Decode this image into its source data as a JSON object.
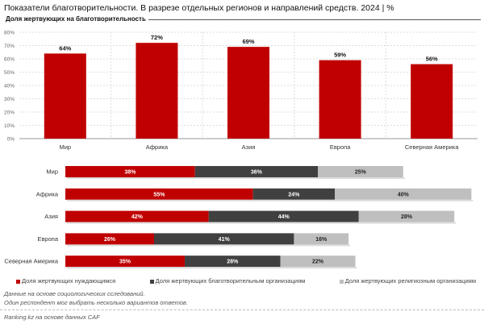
{
  "title": "Показатели благотворительности. В разрезе отдельных регионов и направлений средств. 2024 | %",
  "chart_data": [
    {
      "type": "bar",
      "title": "Доля жертвующих на благотворительность",
      "categories": [
        "Мир",
        "Африка",
        "Азия",
        "Европа",
        "Северная Америка"
      ],
      "values": [
        64,
        72,
        69,
        59,
        56
      ],
      "data_labels": [
        "64%",
        "72%",
        "69%",
        "59%",
        "56%"
      ],
      "ylim": [
        0,
        80
      ],
      "yticks": [
        "0%",
        "10%",
        "20%",
        "30%",
        "40%",
        "50%",
        "60%",
        "70%",
        "80%"
      ],
      "grid": true,
      "color": "#c00000"
    },
    {
      "type": "bar",
      "orientation": "horizontal",
      "stacked": true,
      "categories": [
        "Мир",
        "Африка",
        "Азия",
        "Европа",
        "Северная Америка"
      ],
      "series": [
        {
          "name": "Доля жертвующих нуждающимся",
          "values": [
            38,
            55,
            42,
            26,
            35
          ],
          "color": "#c00000"
        },
        {
          "name": "Доля жертвующих благотворительным организациям",
          "values": [
            36,
            24,
            44,
            41,
            28
          ],
          "color": "#404040"
        },
        {
          "name": "Доля жертвующих религиозным организациям",
          "values": [
            25,
            40,
            28,
            16,
            22
          ],
          "color": "#bfbfbf"
        }
      ],
      "legend": "bottom"
    }
  ],
  "notes": [
    "Данные на основе социологических сследований.",
    "Один респондент мог выбрать несколько вариантов ответов."
  ],
  "source": "Ranking.kz на основе данных CAF"
}
